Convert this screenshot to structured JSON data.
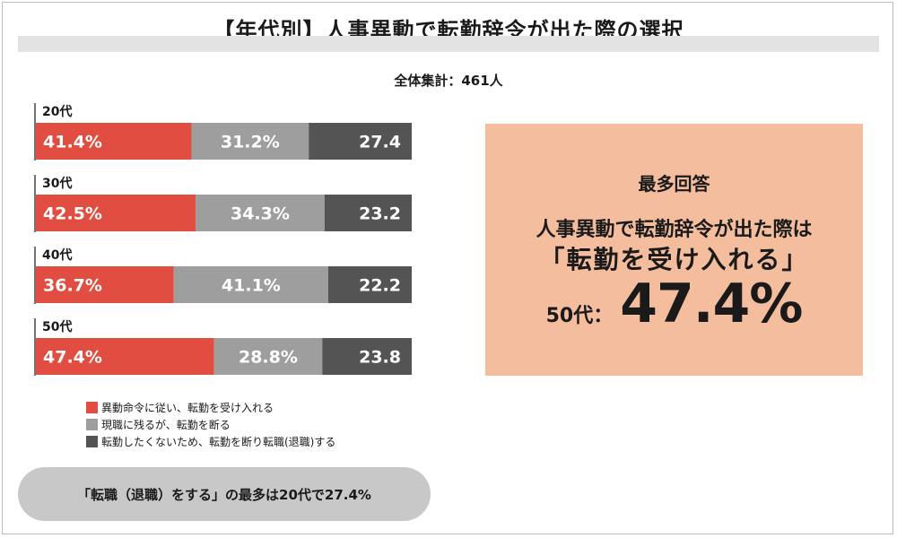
{
  "title": "【年代別】人事異動で転勤辞令が出た際の選択",
  "subtitle": "全体集計：461人",
  "colors": {
    "accept": "#e24d42",
    "stay": "#9e9e9e",
    "quit": "#545454"
  },
  "chart_data": {
    "type": "bar",
    "orientation": "horizontal-stacked-100",
    "title": "【年代別】人事異動で転勤辞令が出た際の選択",
    "subtitle": "全体集計：461人",
    "categories": [
      "20代",
      "30代",
      "40代",
      "50代"
    ],
    "series": [
      {
        "name": "異動命令に従い、転勤を受け入れる",
        "values": [
          41.4,
          42.5,
          36.7,
          47.4
        ],
        "labels": [
          "41.4%",
          "42.5%",
          "36.7%",
          "47.4%"
        ],
        "color": "#e24d42"
      },
      {
        "name": "現職に残るが、転勤を断る",
        "values": [
          31.2,
          34.3,
          41.1,
          28.8
        ],
        "labels": [
          "31.2%",
          "34.3%",
          "41.1%",
          "28.8%"
        ],
        "color": "#9e9e9e"
      },
      {
        "name": "転勤したくないため、転勤を断り転職(退職)する",
        "values": [
          27.4,
          23.2,
          22.2,
          23.8
        ],
        "labels": [
          "27.4",
          "23.2",
          "22.2",
          "23.8"
        ],
        "color": "#545454"
      }
    ],
    "xlim": [
      0,
      100
    ],
    "grid": false,
    "legend_position": "bottom-left"
  },
  "legend": [
    {
      "label": "異動命令に従い、転勤を受け入れる",
      "color": "#e24d42"
    },
    {
      "label": "現職に残るが、転勤を断る",
      "color": "#9e9e9e"
    },
    {
      "label": "転勤したくないため、転勤を断り転職(退職)する",
      "color": "#545454"
    }
  ],
  "highlight": {
    "heading": "最多回答",
    "line1": "人事異動で転勤辞令が出た際は",
    "line2": "「転勤を受け入れる」",
    "age_label": "50代：",
    "value": "47.4%"
  },
  "footnote": "「転職（退職）をする」の最多は20代で27.4%"
}
